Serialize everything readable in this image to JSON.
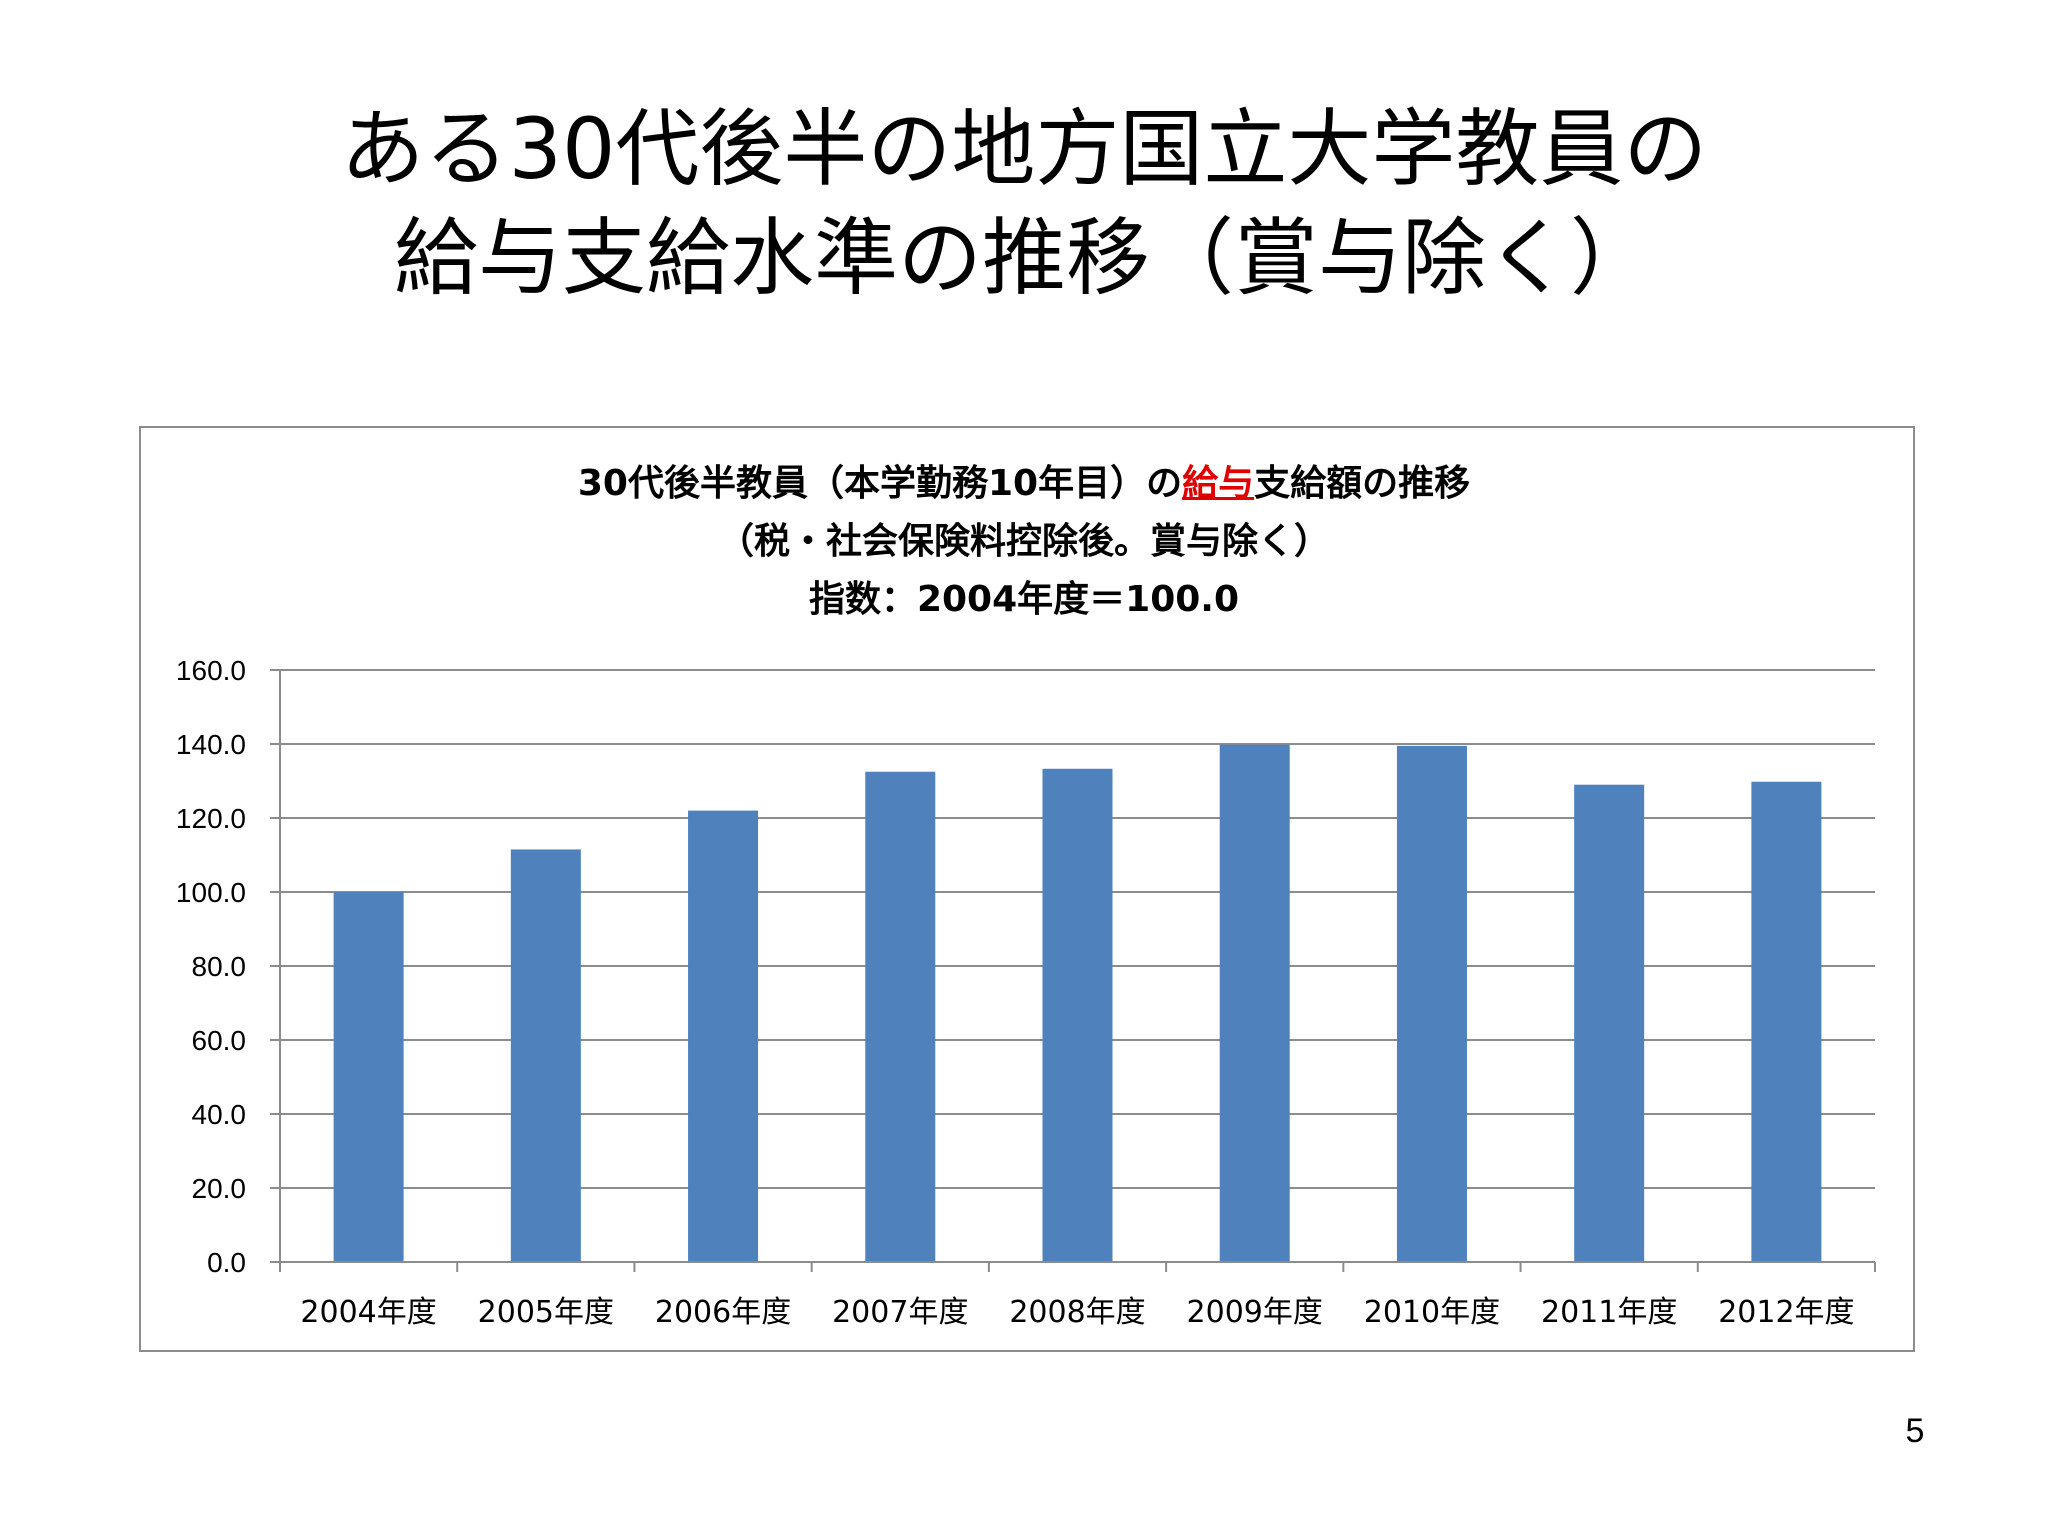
{
  "slide": {
    "title_line1": "ある30代後半の地方国立大学教員の",
    "title_line2": "給与支給水準の推移（賞与除く）",
    "page_number": "5"
  },
  "chart_data": {
    "type": "bar",
    "title_line1_pre": "30代後半教員（本学勤務10年目）の",
    "title_line1_red": "給与",
    "title_line1_post": "支給額の推移",
    "title_line2": "（税・社会保険料控除後。賞与除く）",
    "title_line3": "指数：2004年度＝100.0",
    "categories": [
      "2004年度",
      "2005年度",
      "2006年度",
      "2007年度",
      "2008年度",
      "2009年度",
      "2010年度",
      "2011年度",
      "2012年度"
    ],
    "values": [
      100.0,
      111.5,
      122.0,
      132.5,
      133.3,
      139.8,
      139.5,
      129.0,
      129.8
    ],
    "ylim": [
      0,
      160
    ],
    "yticks": [
      "0.0",
      "20.0",
      "40.0",
      "60.0",
      "80.0",
      "100.0",
      "120.0",
      "140.0",
      "160.0"
    ],
    "grid": true,
    "legend": "none",
    "colors": {
      "bar": "#4f81bd",
      "grid": "#8c8c8c",
      "highlight": "#e00000"
    }
  }
}
